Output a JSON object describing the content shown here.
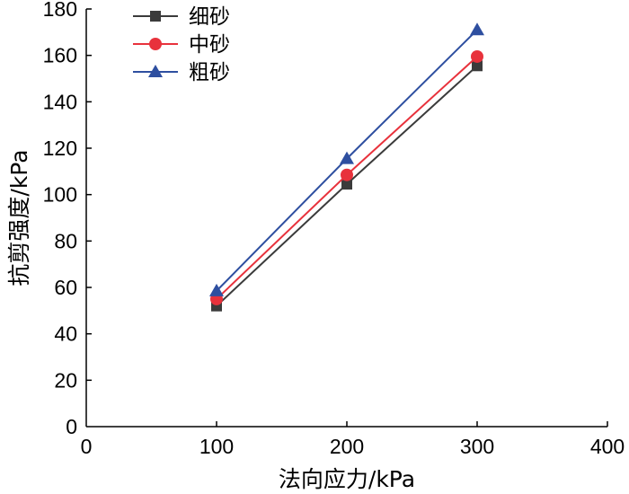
{
  "chart_data": {
    "type": "line",
    "title": "",
    "xlabel": "法向应力/kPa",
    "ylabel": "抗剪强度/kPa",
    "xlim": [
      0,
      400
    ],
    "ylim": [
      0,
      180
    ],
    "xticks": [
      0,
      100,
      200,
      300,
      400
    ],
    "yticks": [
      0,
      20,
      40,
      60,
      80,
      100,
      120,
      140,
      160,
      180
    ],
    "grid": false,
    "legend_position": "top-left",
    "series": [
      {
        "name": "细砂",
        "marker": "square",
        "color": "#3b3b3b",
        "marker_color": "#3b3b3b",
        "x": [
          100,
          200,
          300
        ],
        "y": [
          52,
          104.5,
          155.5
        ]
      },
      {
        "name": "中砂",
        "marker": "circle",
        "color": "#e8323c",
        "marker_color": "#e8323c",
        "x": [
          100,
          200,
          300
        ],
        "y": [
          55,
          108.5,
          159.5
        ]
      },
      {
        "name": "粗砂",
        "marker": "triangle",
        "color": "#2e4fa0",
        "marker_color": "#2e4fa0",
        "x": [
          100,
          200,
          300
        ],
        "y": [
          58.5,
          115.5,
          171
        ]
      }
    ]
  }
}
